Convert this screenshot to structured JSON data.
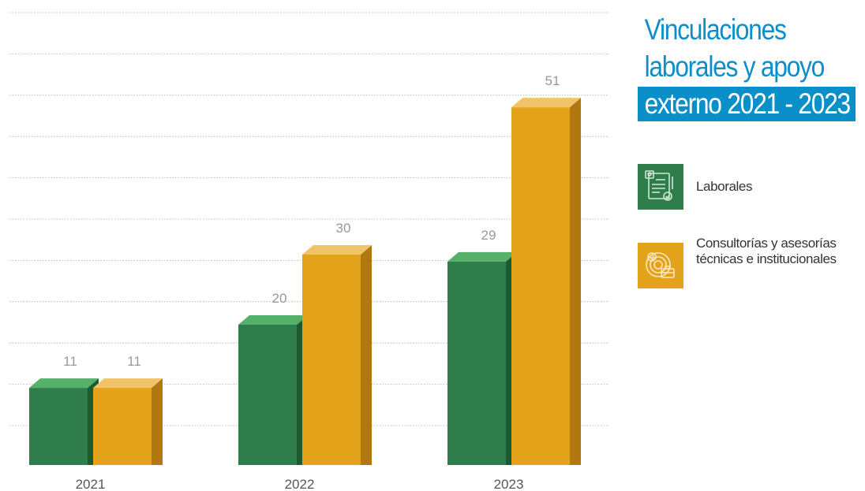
{
  "title": {
    "line1": "Vinculaciones",
    "line2": "laborales y apoyo",
    "line3": "externo 2021 - 2023"
  },
  "legend": [
    {
      "label": "Laborales",
      "icon": "document-contract-icon",
      "color": "#2e7d4a"
    },
    {
      "label": "Consultorías y asesorías técnicas e institucionales",
      "icon": "consulting-briefcase-icon",
      "color": "#e2a31b"
    }
  ],
  "colors": {
    "title": "#0a8fc9",
    "series_green_front": "#2e7d4a",
    "series_green_top": "#55b06a",
    "series_green_side": "#1c5a33",
    "series_orange_front": "#e2a31b",
    "series_orange_top": "#f1c46a",
    "series_orange_side": "#b1780f",
    "label_text": "#999999",
    "axis_text": "#555555",
    "grid": "#aaaaaa"
  },
  "chart_data": {
    "type": "bar",
    "categories": [
      "2021",
      "2022",
      "2023"
    ],
    "series": [
      {
        "name": "Laborales",
        "values": [
          11,
          20,
          29
        ]
      },
      {
        "name": "Consultorías y asesorías técnicas e institucionales",
        "values": [
          11,
          30,
          51
        ]
      }
    ],
    "ylim": [
      0,
      55
    ],
    "grid": true,
    "legend_position": "right"
  }
}
